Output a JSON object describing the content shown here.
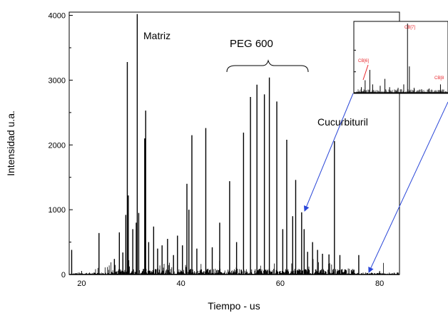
{
  "chart_data": [
    {
      "type": "bar",
      "description_role": "main spectrum",
      "xlabel": "Tiempo - us",
      "ylabel": "Intensidad u.a.",
      "xlim": [
        17.5,
        84
      ],
      "ylim": [
        0,
        4050
      ],
      "xticks": [
        20,
        40,
        60,
        80
      ],
      "yticks": [
        0,
        1000,
        2000,
        3000,
        4000
      ],
      "grid": false,
      "annotations": [
        {
          "text": "Matriz"
        },
        {
          "text": "PEG 600"
        },
        {
          "text": "Cucurbituril"
        }
      ],
      "peaks": [
        {
          "x": 18.0,
          "y": 380
        },
        {
          "x": 23.5,
          "y": 640
        },
        {
          "x": 26.6,
          "y": 240
        },
        {
          "x": 27.6,
          "y": 650
        },
        {
          "x": 28.3,
          "y": 340
        },
        {
          "x": 28.9,
          "y": 920
        },
        {
          "x": 29.2,
          "y": 3280
        },
        {
          "x": 29.4,
          "y": 1220
        },
        {
          "x": 30.3,
          "y": 700
        },
        {
          "x": 31.0,
          "y": 800
        },
        {
          "x": 31.2,
          "y": 4020
        },
        {
          "x": 31.5,
          "y": 950
        },
        {
          "x": 32.7,
          "y": 2100
        },
        {
          "x": 32.9,
          "y": 2530
        },
        {
          "x": 33.5,
          "y": 500
        },
        {
          "x": 34.5,
          "y": 740
        },
        {
          "x": 35.3,
          "y": 400
        },
        {
          "x": 36.2,
          "y": 450
        },
        {
          "x": 37.3,
          "y": 550
        },
        {
          "x": 38.5,
          "y": 300
        },
        {
          "x": 39.3,
          "y": 600
        },
        {
          "x": 40.3,
          "y": 450
        },
        {
          "x": 41.2,
          "y": 1400
        },
        {
          "x": 41.6,
          "y": 1000
        },
        {
          "x": 42.2,
          "y": 2150
        },
        {
          "x": 43.2,
          "y": 400
        },
        {
          "x": 45.0,
          "y": 2260
        },
        {
          "x": 46.3,
          "y": 420
        },
        {
          "x": 47.8,
          "y": 800
        },
        {
          "x": 49.8,
          "y": 1440
        },
        {
          "x": 51.2,
          "y": 500
        },
        {
          "x": 52.6,
          "y": 2190
        },
        {
          "x": 54.0,
          "y": 2740
        },
        {
          "x": 55.3,
          "y": 2930
        },
        {
          "x": 56.8,
          "y": 2780
        },
        {
          "x": 57.8,
          "y": 3040
        },
        {
          "x": 59.3,
          "y": 2670
        },
        {
          "x": 60.5,
          "y": 700
        },
        {
          "x": 61.3,
          "y": 2080
        },
        {
          "x": 62.5,
          "y": 900
        },
        {
          "x": 63.1,
          "y": 1460
        },
        {
          "x": 64.3,
          "y": 960
        },
        {
          "x": 64.8,
          "y": 700
        },
        {
          "x": 65.5,
          "y": 350
        },
        {
          "x": 66.5,
          "y": 500
        },
        {
          "x": 67.5,
          "y": 380
        },
        {
          "x": 68.5,
          "y": 320
        },
        {
          "x": 69.8,
          "y": 310
        },
        {
          "x": 70.9,
          "y": 2060
        },
        {
          "x": 72.0,
          "y": 300
        },
        {
          "x": 75.8,
          "y": 300
        }
      ]
    },
    {
      "type": "bar",
      "description_role": "inset zoom",
      "annotations": [
        {
          "text": "CB[6]",
          "color": "#e8252b"
        },
        {
          "text": "CB[7]",
          "color": "#e8252b"
        },
        {
          "text": "CB[8",
          "color": "#e8252b"
        }
      ],
      "xticks_labels": [
        "",
        "",
        "",
        ""
      ],
      "yticks_labels": [
        "",
        "",
        ""
      ],
      "peaks": [
        {
          "x": 0.08,
          "y": 0.08
        },
        {
          "x": 0.12,
          "y": 0.18
        },
        {
          "x": 0.17,
          "y": 0.33
        },
        {
          "x": 0.2,
          "y": 0.12
        },
        {
          "x": 0.28,
          "y": 0.1
        },
        {
          "x": 0.33,
          "y": 0.2
        },
        {
          "x": 0.38,
          "y": 0.08
        },
        {
          "x": 0.47,
          "y": 0.07
        },
        {
          "x": 0.53,
          "y": 0.12
        },
        {
          "x": 0.57,
          "y": 1.0
        },
        {
          "x": 0.59,
          "y": 0.38
        },
        {
          "x": 0.64,
          "y": 0.07
        },
        {
          "x": 0.72,
          "y": 0.05
        },
        {
          "x": 0.8,
          "y": 0.06
        },
        {
          "x": 0.92,
          "y": 0.12
        }
      ]
    }
  ],
  "colors": {
    "axis": "#000000",
    "data": "#000000",
    "arrow": "#2a47d8",
    "inset_label": "#e8252b"
  }
}
